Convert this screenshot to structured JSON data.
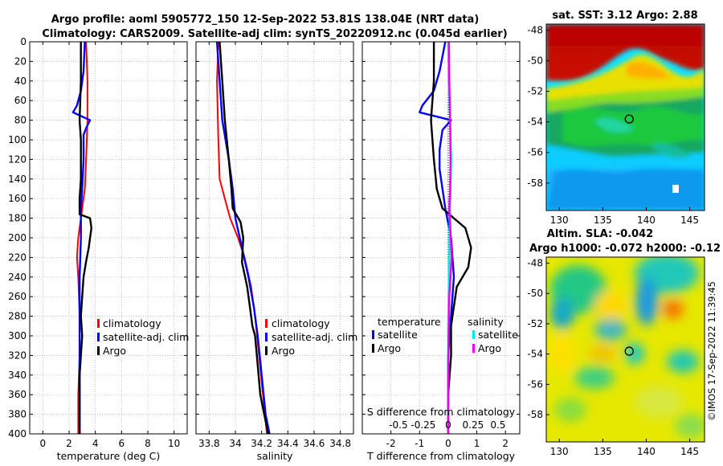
{
  "header": {
    "line1": "Argo profile: aoml 5905772_150 12-Sep-2022 53.81S 138.04E (NRT data)",
    "line2": "Climatology: CARS2009. Satellite-adj clim: synTS_20220912.nc (0.045d earlier)"
  },
  "copyright": "©IMOS 17-Sep-2022 11:39:45",
  "colors": {
    "climatology": "#ff0000",
    "satellite": "#0000ff",
    "argo": "#000000",
    "sal_satellite": "#00e5ee",
    "sal_argo": "#ee00ee"
  },
  "chart_data": [
    {
      "id": "temperature",
      "type": "line",
      "xlabel": "temperature (deg C)",
      "ylabel": "",
      "xlim": [
        -1,
        11
      ],
      "ylim": [
        400,
        0
      ],
      "x_ticks": [
        0,
        2,
        4,
        6,
        8,
        10
      ],
      "y_ticks": [
        0,
        20,
        40,
        60,
        80,
        100,
        120,
        140,
        160,
        180,
        200,
        220,
        240,
        260,
        280,
        300,
        320,
        340,
        360,
        380,
        400
      ],
      "grid": true,
      "legend": {
        "position": "lower-right",
        "entries": [
          "climatology",
          "satellite-adj. clim",
          "Argo"
        ]
      },
      "series": [
        {
          "name": "climatology",
          "color_key": "climatology",
          "points": [
            [
              3.3,
              0
            ],
            [
              3.4,
              40
            ],
            [
              3.4,
              80
            ],
            [
              3.3,
              120
            ],
            [
              3.2,
              150
            ],
            [
              3.0,
              170
            ],
            [
              2.9,
              180
            ],
            [
              2.7,
              200
            ],
            [
              2.6,
              220
            ],
            [
              2.7,
              240
            ],
            [
              2.8,
              280
            ],
            [
              2.8,
              320
            ],
            [
              2.7,
              360
            ],
            [
              2.7,
              400
            ]
          ]
        },
        {
          "name": "satellite-adj. clim",
          "color_key": "satellite",
          "points": [
            [
              3.2,
              0
            ],
            [
              3.1,
              30
            ],
            [
              2.9,
              50
            ],
            [
              2.6,
              65
            ],
            [
              2.3,
              72
            ],
            [
              3.6,
              80
            ],
            [
              3.3,
              88
            ],
            [
              3.1,
              95
            ],
            [
              3.1,
              120
            ],
            [
              3.0,
              150
            ],
            [
              2.9,
              170
            ],
            [
              2.9,
              200
            ],
            [
              2.8,
              240
            ],
            [
              2.8,
              280
            ],
            [
              2.8,
              320
            ],
            [
              2.8,
              360
            ],
            [
              2.8,
              400
            ]
          ]
        },
        {
          "name": "Argo",
          "color_key": "argo",
          "points": [
            [
              2.9,
              0
            ],
            [
              2.9,
              40
            ],
            [
              2.8,
              80
            ],
            [
              2.9,
              100
            ],
            [
              2.9,
              140
            ],
            [
              2.8,
              160
            ],
            [
              2.8,
              176
            ],
            [
              3.6,
              180
            ],
            [
              3.7,
              190
            ],
            [
              3.6,
              200
            ],
            [
              3.5,
              210
            ],
            [
              3.3,
              224
            ],
            [
              3.1,
              240
            ],
            [
              3.0,
              260
            ],
            [
              2.9,
              280
            ],
            [
              3.0,
              300
            ],
            [
              2.9,
              320
            ],
            [
              2.8,
              340
            ],
            [
              2.8,
              360
            ],
            [
              2.8,
              380
            ],
            [
              2.8,
              400
            ]
          ]
        }
      ]
    },
    {
      "id": "salinity",
      "type": "line",
      "xlabel": "salinity",
      "ylabel": "",
      "xlim": [
        33.7,
        34.9
      ],
      "ylim": [
        400,
        0
      ],
      "x_ticks": [
        33.8,
        34,
        34.2,
        34.4,
        34.6,
        34.8
      ],
      "x_tick_labels": [
        "33.8",
        "34",
        "34.2",
        "34.4",
        "34.6",
        "34.8"
      ],
      "grid": true,
      "legend": {
        "position": "lower-right",
        "entries": [
          "climatology",
          "satellite-adj. clim",
          "Argo"
        ]
      },
      "series": [
        {
          "name": "climatology",
          "color_key": "climatology",
          "points": [
            [
              33.87,
              0
            ],
            [
              33.86,
              40
            ],
            [
              33.87,
              100
            ],
            [
              33.88,
              140
            ],
            [
              33.92,
              160
            ],
            [
              33.96,
              180
            ],
            [
              34.02,
              200
            ],
            [
              34.07,
              220
            ],
            [
              34.12,
              250
            ],
            [
              34.15,
              280
            ],
            [
              34.18,
              320
            ],
            [
              34.21,
              360
            ],
            [
              34.24,
              400
            ]
          ]
        },
        {
          "name": "satellite-adj. clim",
          "color_key": "satellite",
          "points": [
            [
              33.86,
              0
            ],
            [
              33.88,
              40
            ],
            [
              33.9,
              80
            ],
            [
              33.95,
              120
            ],
            [
              33.98,
              150
            ],
            [
              34.0,
              180
            ],
            [
              34.05,
              210
            ],
            [
              34.1,
              240
            ],
            [
              34.14,
              270
            ],
            [
              34.17,
              300
            ],
            [
              34.2,
              340
            ],
            [
              34.23,
              380
            ],
            [
              34.26,
              400
            ]
          ]
        },
        {
          "name": "Argo",
          "color_key": "argo",
          "points": [
            [
              33.88,
              0
            ],
            [
              33.9,
              40
            ],
            [
              33.92,
              80
            ],
            [
              33.95,
              120
            ],
            [
              33.97,
              150
            ],
            [
              33.98,
              170
            ],
            [
              34.04,
              184
            ],
            [
              34.06,
              200
            ],
            [
              34.05,
              225
            ],
            [
              34.09,
              250
            ],
            [
              34.11,
              270
            ],
            [
              34.13,
              290
            ],
            [
              34.15,
              300
            ],
            [
              34.17,
              330
            ],
            [
              34.19,
              360
            ],
            [
              34.22,
              380
            ],
            [
              34.25,
              400
            ]
          ]
        }
      ]
    },
    {
      "id": "difference",
      "type": "line",
      "xlabel": "T difference from climatology",
      "ylabel": "",
      "xlim": [
        -3,
        2.5
      ],
      "ylim": [
        400,
        0
      ],
      "x_ticks": [
        -2,
        -1,
        0,
        1,
        2
      ],
      "x_tick_labels": [
        "-2",
        "-1",
        "0",
        "1",
        "2"
      ],
      "s_axis_title": "S difference from climatology",
      "s_ticks": [
        -0.5,
        -0.25,
        0,
        0.25,
        0.5
      ],
      "s_tick_labels": [
        "-0.5",
        "-0.25",
        "0",
        "0.25",
        "0.5"
      ],
      "grid": true,
      "legend": {
        "position": "lower-center",
        "headers": [
          "temperature",
          "salinity"
        ],
        "entries": [
          "satellite",
          "Argo",
          "satellite",
          "Argo"
        ]
      },
      "series": [
        {
          "name": "temperature satellite",
          "color_key": "satellite",
          "points": [
            [
              -0.1,
              0
            ],
            [
              -0.3,
              30
            ],
            [
              -0.5,
              50
            ],
            [
              -0.9,
              65
            ],
            [
              -1.0,
              72
            ],
            [
              0.1,
              80
            ],
            [
              -0.2,
              90
            ],
            [
              -0.3,
              110
            ],
            [
              -0.3,
              130
            ],
            [
              -0.2,
              150
            ],
            [
              -0.1,
              170
            ],
            [
              0.1,
              200
            ],
            [
              0.2,
              240
            ],
            [
              0.1,
              280
            ],
            [
              0.0,
              320
            ],
            [
              0.0,
              360
            ],
            [
              0.0,
              400
            ]
          ]
        },
        {
          "name": "temperature Argo",
          "color_key": "argo",
          "points": [
            [
              -0.5,
              0
            ],
            [
              -0.5,
              40
            ],
            [
              -0.6,
              80
            ],
            [
              -0.5,
              120
            ],
            [
              -0.4,
              150
            ],
            [
              -0.2,
              170
            ],
            [
              0.2,
              180
            ],
            [
              0.6,
              190
            ],
            [
              0.8,
              210
            ],
            [
              0.7,
              230
            ],
            [
              0.3,
              250
            ],
            [
              0.2,
              270
            ],
            [
              0.1,
              290
            ],
            [
              0.1,
              320
            ],
            [
              0.0,
              360
            ],
            [
              0.0,
              400
            ]
          ]
        },
        {
          "name": "salinity satellite",
          "color_key": "sal_satellite",
          "points": [
            [
              0.0,
              0
            ],
            [
              0.01,
              40
            ],
            [
              0.05,
              80
            ],
            [
              0.08,
              120
            ],
            [
              0.06,
              150
            ],
            [
              0.04,
              180
            ],
            [
              0.03,
              220
            ],
            [
              0.01,
              260
            ],
            [
              0.0,
              300
            ],
            [
              0.0,
              340
            ],
            [
              0.0,
              400
            ]
          ]
        },
        {
          "name": "salinity Argo",
          "color_key": "sal_argo",
          "points": [
            [
              0.02,
              0
            ],
            [
              0.03,
              40
            ],
            [
              0.05,
              80
            ],
            [
              0.06,
              120
            ],
            [
              0.05,
              150
            ],
            [
              0.03,
              170
            ],
            [
              0.07,
              200
            ],
            [
              0.09,
              220
            ],
            [
              0.06,
              240
            ],
            [
              0.03,
              260
            ],
            [
              0.01,
              300
            ],
            [
              0.0,
              340
            ],
            [
              0.0,
              400
            ]
          ]
        }
      ]
    },
    {
      "id": "sst_map",
      "type": "heatmap",
      "title": "sat. SST: 3.12 Argo: 2.88",
      "x_ticks": [
        130,
        135,
        140,
        145
      ],
      "x_tick_labels": [
        "130",
        "135",
        "140",
        "145"
      ],
      "xlim": [
        128.5,
        146.7
      ],
      "y_ticks": [
        -48,
        -50,
        -52,
        -54,
        -56,
        -58
      ],
      "y_tick_labels": [
        "-48",
        "-50",
        "-52",
        "-54",
        "-56",
        "-58"
      ],
      "ylim": [
        -59.8,
        -47.6
      ],
      "marker": [
        138.04,
        -53.81
      ]
    },
    {
      "id": "sla_map",
      "type": "heatmap",
      "title": "Altim. SLA: -0.042",
      "subtitle": "Argo h1000: -0.072 h2000: -0.12",
      "x_ticks": [
        130,
        135,
        140,
        145
      ],
      "x_tick_labels": [
        "130",
        "135",
        "140",
        "145"
      ],
      "xlim": [
        128.5,
        146.7
      ],
      "y_ticks": [
        -48,
        -50,
        -52,
        -54,
        -56,
        -58
      ],
      "y_tick_labels": [
        "-48",
        "-50",
        "-52",
        "-54",
        "-56",
        "-58"
      ],
      "ylim": [
        -59.8,
        -47.6
      ],
      "marker": [
        138.04,
        -53.81
      ]
    }
  ]
}
